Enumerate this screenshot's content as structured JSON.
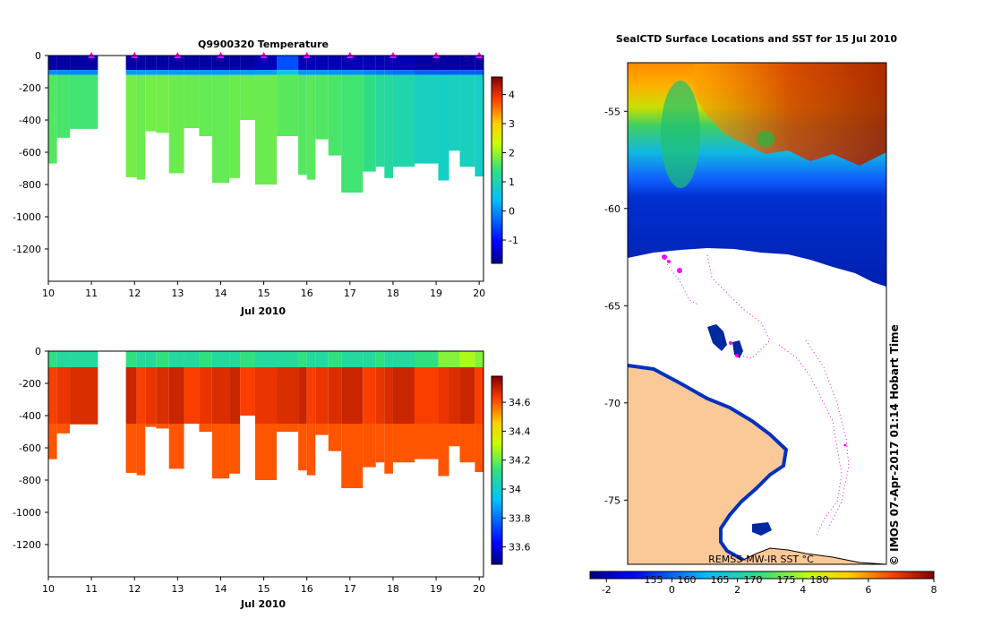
{
  "chart_data": [
    {
      "id": "temperature",
      "type": "heatmap",
      "title": "Q9900320  Temperature",
      "xlabel": "Jul 2010",
      "xlim": [
        10,
        20.1
      ],
      "ylim": [
        -1400,
        0
      ],
      "xticks": [
        10,
        11,
        12,
        13,
        14,
        15,
        16,
        17,
        18,
        19,
        20
      ],
      "yticks": [
        0,
        -200,
        -400,
        -600,
        -800,
        -1000,
        -1200
      ],
      "colorbar": {
        "min": -1.8,
        "max": 4.6,
        "ticks": [
          -1,
          0,
          1,
          2,
          3,
          4
        ],
        "labels": [
          "-1",
          "0",
          "1",
          "2",
          "3",
          "4"
        ]
      },
      "profile_markers": [
        11,
        12,
        13,
        14,
        15,
        16,
        17,
        18,
        19,
        20
      ],
      "gap": [
        11.15,
        11.8
      ],
      "profiles": [
        {
          "x0": 10.0,
          "x1": 10.2,
          "depth": 670,
          "surface": -1.6,
          "value": 1.6
        },
        {
          "x0": 10.2,
          "x1": 10.5,
          "depth": 510,
          "surface": -1.6,
          "value": 1.55
        },
        {
          "x0": 10.5,
          "x1": 11.15,
          "depth": 455,
          "surface": -1.6,
          "value": 1.5
        },
        {
          "x0": 11.8,
          "x1": 12.05,
          "depth": 755,
          "surface": -1.6,
          "value": 1.8
        },
        {
          "x0": 12.05,
          "x1": 12.25,
          "depth": 770,
          "surface": -1.6,
          "value": 1.75
        },
        {
          "x0": 12.25,
          "x1": 12.5,
          "depth": 470,
          "surface": -1.6,
          "value": 1.8
        },
        {
          "x0": 12.5,
          "x1": 12.8,
          "depth": 480,
          "surface": -1.6,
          "value": 1.8
        },
        {
          "x0": 12.8,
          "x1": 13.15,
          "depth": 730,
          "surface": -1.6,
          "value": 1.75
        },
        {
          "x0": 13.15,
          "x1": 13.5,
          "depth": 450,
          "surface": -1.6,
          "value": 1.75
        },
        {
          "x0": 13.5,
          "x1": 13.8,
          "depth": 500,
          "surface": -1.6,
          "value": 1.7
        },
        {
          "x0": 13.8,
          "x1": 14.2,
          "depth": 790,
          "surface": -1.6,
          "value": 1.7
        },
        {
          "x0": 14.2,
          "x1": 14.45,
          "depth": 760,
          "surface": -1.6,
          "value": 1.75
        },
        {
          "x0": 14.45,
          "x1": 14.8,
          "depth": 400,
          "surface": -1.6,
          "value": 1.75
        },
        {
          "x0": 14.8,
          "x1": 15.3,
          "depth": 800,
          "surface": -1.5,
          "value": 1.75
        },
        {
          "x0": 15.3,
          "x1": 15.8,
          "depth": 500,
          "surface": -0.5,
          "value": 1.65
        },
        {
          "x0": 15.8,
          "x1": 16.0,
          "depth": 740,
          "surface": -1.5,
          "value": 1.6
        },
        {
          "x0": 16.0,
          "x1": 16.2,
          "depth": 770,
          "surface": -1.5,
          "value": 1.65
        },
        {
          "x0": 16.2,
          "x1": 16.5,
          "depth": 520,
          "surface": -1.5,
          "value": 1.6
        },
        {
          "x0": 16.5,
          "x1": 16.8,
          "depth": 620,
          "surface": -1.5,
          "value": 1.55
        },
        {
          "x0": 16.8,
          "x1": 17.3,
          "depth": 850,
          "surface": -1.5,
          "value": 1.5
        },
        {
          "x0": 17.3,
          "x1": 17.6,
          "depth": 720,
          "surface": -1.5,
          "value": 1.35
        },
        {
          "x0": 17.6,
          "x1": 17.8,
          "depth": 690,
          "surface": -1.5,
          "value": 1.2
        },
        {
          "x0": 17.8,
          "x1": 18.0,
          "depth": 760,
          "surface": -1.5,
          "value": 1.15
        },
        {
          "x0": 18.0,
          "x1": 18.5,
          "depth": 690,
          "surface": -1.5,
          "value": 1.05
        },
        {
          "x0": 18.5,
          "x1": 19.05,
          "depth": 670,
          "surface": -1.6,
          "value": 0.9
        },
        {
          "x0": 19.05,
          "x1": 19.3,
          "depth": 775,
          "surface": -1.6,
          "value": 0.85
        },
        {
          "x0": 19.3,
          "x1": 19.55,
          "depth": 590,
          "surface": -1.6,
          "value": 0.9
        },
        {
          "x0": 19.55,
          "x1": 19.9,
          "depth": 690,
          "surface": -1.6,
          "value": 0.9
        },
        {
          "x0": 19.9,
          "x1": 20.1,
          "depth": 750,
          "surface": -1.6,
          "value": 0.85
        }
      ]
    },
    {
      "id": "salinity",
      "type": "heatmap",
      "title": "",
      "xlabel": "Jul 2010",
      "xlim": [
        10,
        20.1
      ],
      "ylim": [
        -1400,
        0
      ],
      "xticks": [
        10,
        11,
        12,
        13,
        14,
        15,
        16,
        17,
        18,
        19,
        20
      ],
      "yticks": [
        0,
        -200,
        -400,
        -600,
        -800,
        -1000,
        -1200
      ],
      "colorbar": {
        "min": 33.48,
        "max": 34.78,
        "ticks": [
          33.6,
          33.8,
          34,
          34.2,
          34.4,
          34.6
        ],
        "labels": [
          "33.6",
          "33.8",
          "34",
          "34.2",
          "34.4",
          "34.6"
        ]
      },
      "gap": [
        11.15,
        11.8
      ],
      "surface_salinity": 34.1,
      "deep_salinity": 34.66,
      "bottom_salinity": 34.7
    },
    {
      "id": "sst-map",
      "type": "heatmap",
      "title": "SealCTD Surface Locations and SST for 15 Jul 2010",
      "ylim": [
        -78.3,
        -52.5
      ],
      "yticks": [
        -55,
        -60,
        -65,
        -70,
        -75
      ],
      "colorbar": {
        "min": -2.5,
        "max": 8,
        "ticks": [
          -2,
          0,
          2,
          4,
          6,
          8
        ],
        "labels": [
          "-2",
          "0",
          "2",
          "4",
          "6",
          "8"
        ],
        "kelvin_ticks": [
          "155",
          "160",
          "165",
          "170",
          "175",
          "180"
        ],
        "label": "REMSS-MW-IR SST °C"
      },
      "credit": "© IMOS 07-Apr-2017 01:14 Hobart Time"
    }
  ]
}
